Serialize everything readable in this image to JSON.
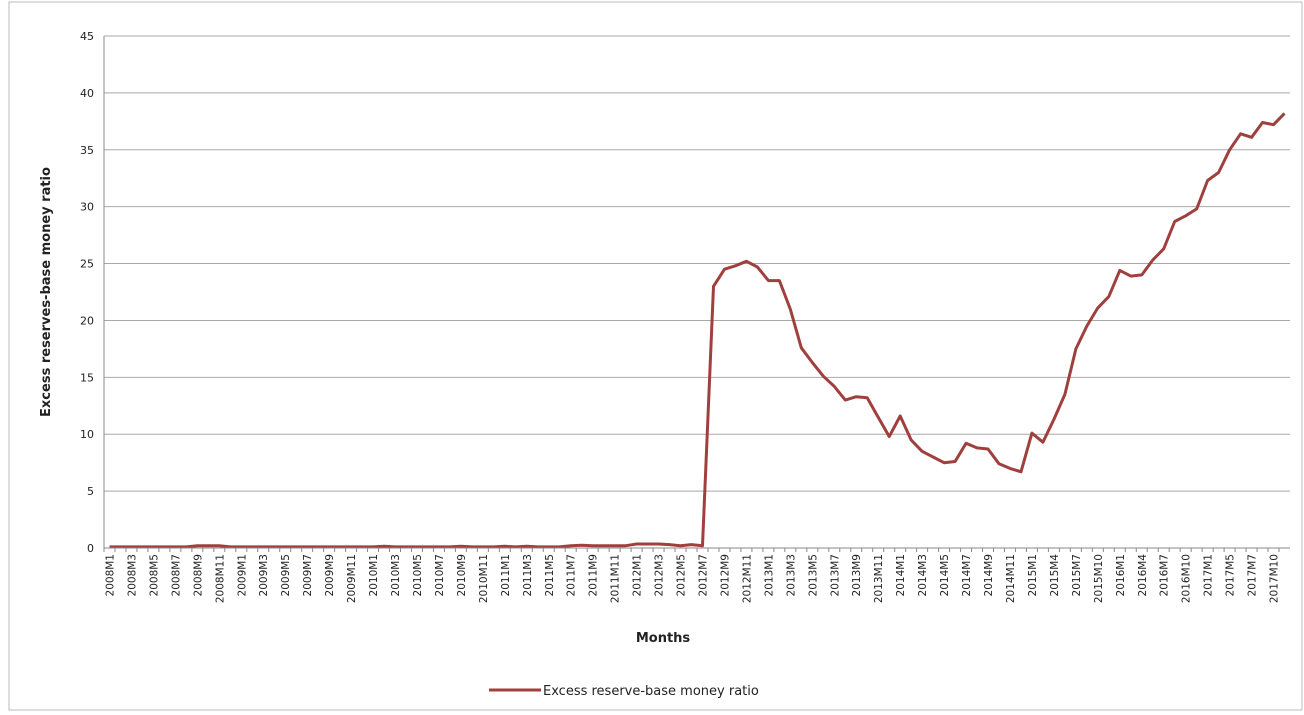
{
  "chart_data": {
    "type": "line",
    "x_label": "Months",
    "y_label": "Excess reserves-base money ratio",
    "categories": [
      "2008M1",
      null,
      "2008M3",
      null,
      "2008M5",
      null,
      "2008M7",
      null,
      "2008M9",
      null,
      "2008M11",
      null,
      "2009M1",
      null,
      "2009M3",
      null,
      "2009M5",
      null,
      "2009M7",
      null,
      "2009M9",
      null,
      "2009M11",
      null,
      "2010M1",
      null,
      "2010M3",
      null,
      "2010M5",
      null,
      "2010M7",
      null,
      "2010M9",
      null,
      "2010M11",
      null,
      "2011M1",
      null,
      "2011M3",
      null,
      "2011M5",
      null,
      "2011M7",
      null,
      "2011M9",
      null,
      "2011M11",
      null,
      "2012M1",
      null,
      "2012M3",
      null,
      "2012M5",
      null,
      "2012M7",
      null,
      "2012M9",
      null,
      "2012M11",
      null,
      "2013M1",
      null,
      "2013M3",
      null,
      "2013M5",
      null,
      "2013M7",
      null,
      "2013M9",
      null,
      "2013M11",
      null,
      "2014M1",
      null,
      "2014M3",
      null,
      "2014M5",
      null,
      "2014M7",
      null,
      "2014M9",
      null,
      "2014M11",
      null,
      "2015M1",
      null,
      "2015M4",
      null,
      "2015M7",
      null,
      "2015M10",
      null,
      "2016M1",
      null,
      "2016M4",
      null,
      "2016M7",
      null,
      "2016M10",
      null,
      "2017M1",
      null,
      "2017M5",
      null,
      "2017M7",
      null,
      "2017M10",
      null
    ],
    "series": [
      {
        "name": "Excess reserve-base money ratio",
        "color": "#a0403e",
        "values": [
          0.1,
          0.1,
          0.1,
          0.1,
          0.1,
          0.1,
          0.1,
          0.1,
          0.2,
          0.2,
          0.2,
          0.1,
          0.1,
          0.1,
          0.1,
          0.1,
          0.1,
          0.1,
          0.1,
          0.1,
          0.1,
          0.1,
          0.1,
          0.1,
          0.1,
          0.15,
          0.1,
          0.1,
          0.1,
          0.1,
          0.1,
          0.1,
          0.15,
          0.1,
          0.1,
          0.1,
          0.15,
          0.1,
          0.15,
          0.1,
          0.1,
          0.1,
          0.2,
          0.25,
          0.2,
          0.2,
          0.2,
          0.2,
          0.35,
          0.35,
          0.35,
          0.3,
          0.2,
          0.3,
          0.2,
          23,
          24.5,
          24.8,
          25.2,
          24.7,
          23.5,
          23.5,
          21,
          17.6,
          16.3,
          15.1,
          14.2,
          13.0,
          13.3,
          13.2,
          11.5,
          9.8,
          11.6,
          9.5,
          8.5,
          8.0,
          7.5,
          7.6,
          9.2,
          8.8,
          8.7,
          7.4,
          7.0,
          6.7,
          10.1,
          9.3,
          11.3,
          13.5,
          17.5,
          19.5,
          21.1,
          22.1,
          24.4,
          23.9,
          24.0,
          25.3,
          26.3,
          28.7,
          29.2,
          29.8,
          32.3,
          33.0,
          35.0,
          36.4,
          36.1,
          37.4,
          37.2,
          38.2
        ]
      }
    ],
    "ylim": [
      0,
      45
    ],
    "yticks": [
      0,
      5,
      10,
      15,
      20,
      25,
      30,
      35,
      40,
      45
    ],
    "grid": true,
    "legend": "bottom"
  }
}
